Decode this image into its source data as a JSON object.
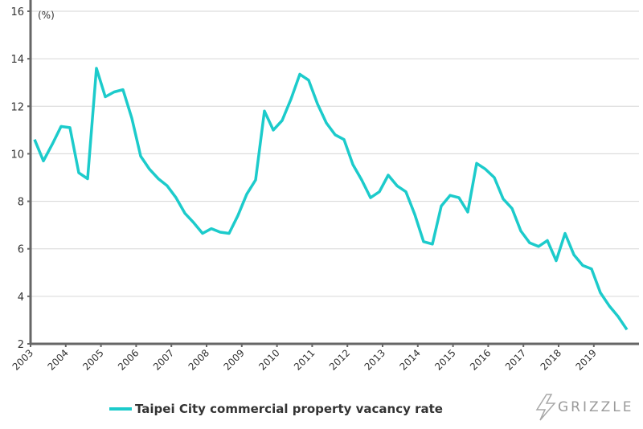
{
  "chart_data": {
    "type": "line",
    "title": "",
    "xlabel": "",
    "ylabel": "(%)",
    "ylim": [
      2,
      16
    ],
    "yticks": [
      2,
      4,
      6,
      8,
      10,
      12,
      14,
      16
    ],
    "xticks": [
      "2003",
      "2004",
      "2005",
      "2006",
      "2007",
      "2008",
      "2009",
      "2010",
      "2011",
      "2012",
      "2013",
      "2014",
      "2015",
      "2016",
      "2017",
      "2018",
      "2019"
    ],
    "grid": "horizontal",
    "legend_position": "bottom",
    "frequency": "quarterly, 2003 Q1 – 2019 Q4",
    "series": [
      {
        "name": "Taipei City commercial property vacancy rate",
        "color": "#1ccbcb",
        "values": [
          10.6,
          9.7,
          10.4,
          11.15,
          11.1,
          9.2,
          8.95,
          13.6,
          12.4,
          12.6,
          12.7,
          11.5,
          9.9,
          9.35,
          8.95,
          8.65,
          8.15,
          7.5,
          7.1,
          6.65,
          6.85,
          6.7,
          6.65,
          7.4,
          8.3,
          8.9,
          11.8,
          11.0,
          11.4,
          12.3,
          13.35,
          13.1,
          12.1,
          11.3,
          10.8,
          10.6,
          9.55,
          8.9,
          8.15,
          8.4,
          9.1,
          8.65,
          8.4,
          7.45,
          6.3,
          6.2,
          7.8,
          8.25,
          8.15,
          7.55,
          9.6,
          9.35,
          9.0,
          8.1,
          7.7,
          6.75,
          6.25,
          6.1,
          6.35,
          5.5,
          6.65,
          5.75,
          5.3,
          5.15,
          4.15,
          3.6,
          3.15,
          2.6
        ]
      }
    ]
  },
  "logo": {
    "text": "GRIZZLE"
  }
}
